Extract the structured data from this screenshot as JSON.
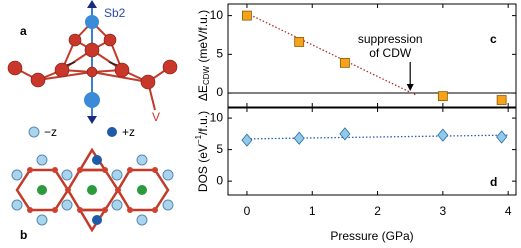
{
  "structure": {
    "panel_a": {
      "label": "a",
      "sb_label": "Sb2",
      "v_label": "V"
    },
    "panel_b": {
      "label": "b",
      "minus_z": "−z",
      "plus_z": "+z"
    }
  },
  "chart_data": [
    {
      "type": "scatter",
      "panel_label": "c",
      "ylabel": {
        "main": "ΔE",
        "sub": "CDW",
        "rest": " (meV/f.u.)"
      },
      "x": [
        0,
        0.8,
        1.5,
        3.0,
        3.9
      ],
      "values": [
        10,
        6.6,
        3.9,
        -0.4,
        -0.9
      ],
      "marker": "square",
      "color": "#f7a21b",
      "edge": "#8a5a00",
      "fit_line": {
        "x": [
          0,
          2.6
        ],
        "values": [
          10.3,
          -0.3
        ],
        "color": "#b0302a"
      },
      "hline": 0,
      "annotation": {
        "lines": [
          "suppression",
          "of CDW"
        ],
        "x": 2.5,
        "y": 0
      },
      "xlim": [
        -0.29,
        4.12
      ],
      "ylim": [
        -1.8,
        11.5
      ],
      "xticks": [
        0,
        1,
        2,
        3,
        4
      ],
      "yticks": [
        0,
        5,
        10
      ]
    },
    {
      "type": "scatter",
      "panel_label": "d",
      "ylabel": {
        "main": "DOS (eV",
        "sup": "−1",
        "rest": "/f.u.)"
      },
      "xlabel": "Pressure (GPa)",
      "x": [
        0,
        0.8,
        1.5,
        3.0,
        3.9
      ],
      "values": [
        6.5,
        6.8,
        7.5,
        7.3,
        7.0
      ],
      "marker": "diamond",
      "color": "#8fcbe8",
      "edge": "#2a6aa8",
      "fit_line": {
        "x": [
          0,
          4.0
        ],
        "values": [
          6.7,
          7.3
        ],
        "color": "#2a5cb0"
      },
      "xlim": [
        -0.29,
        4.12
      ],
      "ylim": [
        -2.2,
        11.6
      ],
      "xticks": [
        0,
        1,
        2,
        3,
        4
      ],
      "yticks": [
        0,
        5,
        10
      ]
    }
  ]
}
